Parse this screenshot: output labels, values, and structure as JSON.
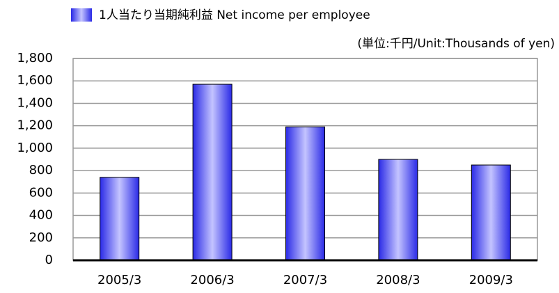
{
  "chart_data": {
    "type": "bar",
    "unit_label": "(単位:千円/Unit:Thousands of yen)",
    "categories": [
      "2005/3",
      "2006/3",
      "2007/3",
      "2008/3",
      "2009/3"
    ],
    "series": [
      {
        "name": "1人当たり当期純利益  Net income per employee",
        "color": "#2a2ae6",
        "values": [
          740,
          1570,
          1190,
          900,
          850
        ]
      }
    ],
    "ylim": [
      0,
      1800
    ],
    "yticks": [
      0,
      200,
      400,
      600,
      800,
      {
        "value": 1000,
        "label": "1,000"
      },
      {
        "value": 1200,
        "label": "1,200"
      },
      {
        "value": 1400,
        "label": "1,400"
      },
      {
        "value": 1600,
        "label": "1,600"
      },
      {
        "value": 1800,
        "label": "1,800"
      }
    ],
    "grid": true
  }
}
